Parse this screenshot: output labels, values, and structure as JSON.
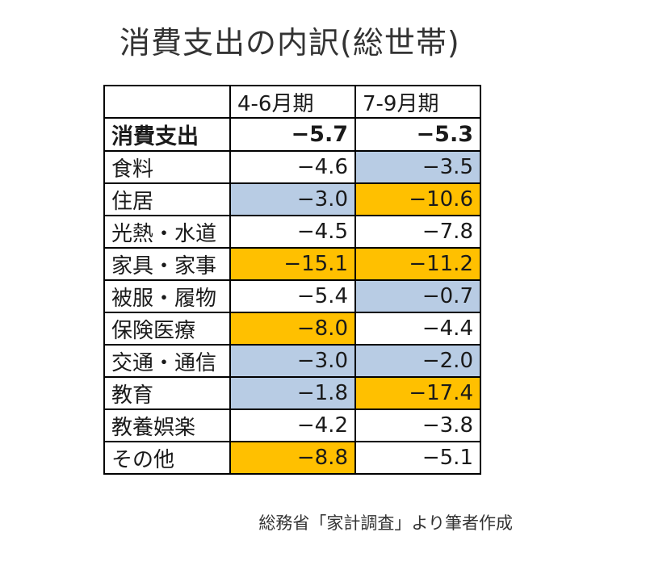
{
  "title": "消費支出の内訳(総世帯)",
  "source": "総務省「家計調査」より筆者作成",
  "colors": {
    "decrease_highlight": "#b8cce4",
    "large_decrease_highlight": "#ffc000"
  },
  "chart_data": {
    "type": "table",
    "columns": [
      "",
      "4-6月期",
      "7-9月期"
    ],
    "total": {
      "label": "消費支出",
      "q2": "−5.7",
      "q3": "−5.3"
    },
    "rows": [
      {
        "label": "食料",
        "q2": "−4.6",
        "q3": "−3.5",
        "q2_highlight": "none",
        "q3_highlight": "blue"
      },
      {
        "label": "住居",
        "q2": "−3.0",
        "q3": "−10.6",
        "q2_highlight": "blue",
        "q3_highlight": "orange"
      },
      {
        "label": "光熱・水道",
        "q2": "−4.5",
        "q3": "−7.8",
        "q2_highlight": "none",
        "q3_highlight": "none"
      },
      {
        "label": "家具・家事",
        "q2": "−15.1",
        "q3": "−11.2",
        "q2_highlight": "orange",
        "q3_highlight": "orange"
      },
      {
        "label": "被服・履物",
        "q2": "−5.4",
        "q3": "−0.7",
        "q2_highlight": "none",
        "q3_highlight": "blue"
      },
      {
        "label": "保険医療",
        "q2": "−8.0",
        "q3": "−4.4",
        "q2_highlight": "orange",
        "q3_highlight": "none"
      },
      {
        "label": "交通・通信",
        "q2": "−3.0",
        "q3": "−2.0",
        "q2_highlight": "blue",
        "q3_highlight": "blue"
      },
      {
        "label": "教育",
        "q2": "−1.8",
        "q3": "−17.4",
        "q2_highlight": "blue",
        "q3_highlight": "orange"
      },
      {
        "label": "教養娯楽",
        "q2": "−4.2",
        "q3": "−3.8",
        "q2_highlight": "none",
        "q3_highlight": "none"
      },
      {
        "label": "その他",
        "q2": "−8.8",
        "q3": "−5.1",
        "q2_highlight": "orange",
        "q3_highlight": "none"
      }
    ]
  }
}
